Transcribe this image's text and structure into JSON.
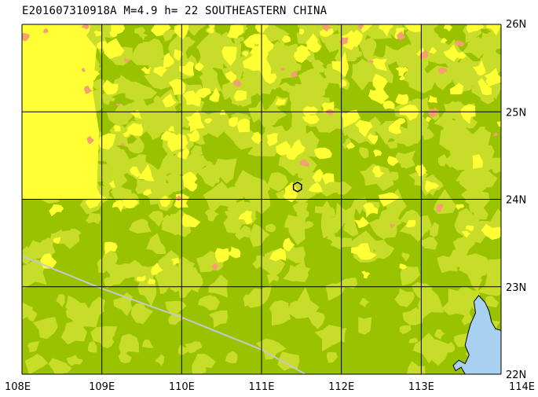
{
  "title": "E201607310918A M=4.9 h= 22 SOUTHEASTERN CHINA",
  "map": {
    "lon_range": [
      108,
      114
    ],
    "lat_range": [
      22,
      26
    ],
    "lon_labels": [
      "108E",
      "109E",
      "110E",
      "111E",
      "112E",
      "113E",
      "114E"
    ],
    "lat_labels": [
      "26N",
      "25N",
      "24N",
      "23N",
      "22N"
    ],
    "epicenter": {
      "lon": 111.45,
      "lat": 24.14
    },
    "boundary_line": [
      {
        "lon": 108.0,
        "lat": 23.35
      },
      {
        "lon": 109.0,
        "lat": 22.98
      },
      {
        "lon": 110.0,
        "lat": 22.65
      },
      {
        "lon": 111.0,
        "lat": 22.28
      },
      {
        "lon": 111.55,
        "lat": 22.0
      }
    ],
    "colors": {
      "lowland": "#99c200",
      "midland": "#c8dd2a",
      "upland": "#ffff33",
      "highland": "#f5a070",
      "water": "#a8d0f0",
      "boundary": "#c8c8c8",
      "grid": "#000000"
    }
  }
}
